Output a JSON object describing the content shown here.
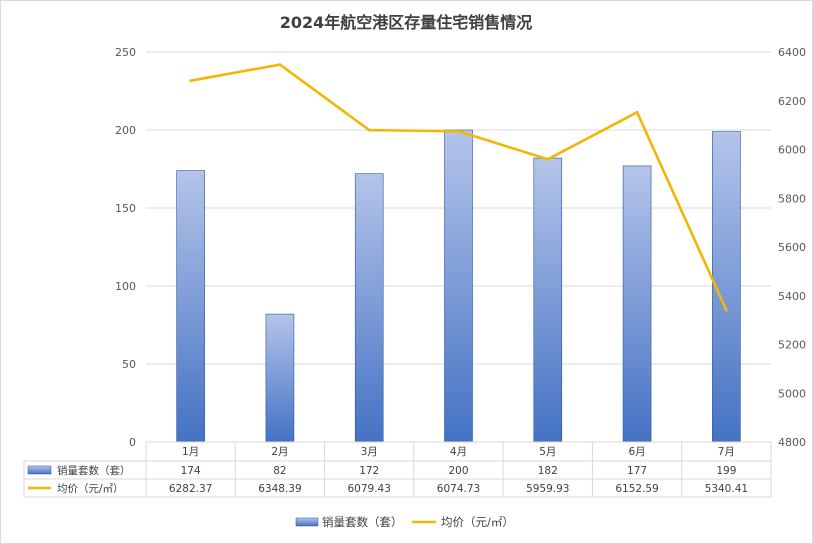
{
  "chart_data": {
    "type": "bar",
    "title": "2024年航空港区存量住宅销售情况",
    "categories": [
      "1月",
      "2月",
      "3月",
      "4月",
      "5月",
      "6月",
      "7月"
    ],
    "series": [
      {
        "name": "销量套数（套）",
        "type": "bar",
        "axis": "left",
        "values": [
          174,
          82,
          172,
          200,
          182,
          177,
          199
        ],
        "labels": [
          "174",
          "82",
          "172",
          "200",
          "182",
          "177",
          "199"
        ],
        "color": "#4472C4"
      },
      {
        "name": "均价（元/㎡）",
        "type": "line",
        "axis": "right",
        "values": [
          6282.37,
          6348.39,
          6079.43,
          6074.73,
          5959.93,
          6152.59,
          5340.41
        ],
        "labels": [
          "6282.37",
          "6348.39",
          "6079.43",
          "6074.73",
          "5959.93",
          "6152.59",
          "5340.41"
        ],
        "color": "#F2B705"
      }
    ],
    "ylim": [
      0,
      250
    ],
    "yticks": [
      "0",
      "50",
      "100",
      "150",
      "200",
      "250"
    ],
    "y2lim": [
      4800,
      6400
    ],
    "y2ticks": [
      "4800",
      "5000",
      "5200",
      "5400",
      "5600",
      "5800",
      "6000",
      "6200",
      "6400"
    ],
    "grid": true,
    "data_table": true,
    "legend": "bottom"
  }
}
